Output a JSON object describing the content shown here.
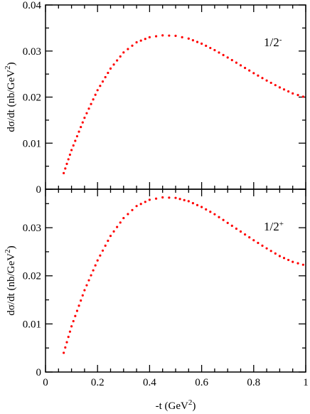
{
  "chart_data": [
    {
      "type": "scatter",
      "panel_label": {
        "base": "1/2",
        "sup": "-"
      },
      "ylabel": {
        "pre": "dσ/dt (nb/GeV",
        "sup": "2",
        "post": ")"
      },
      "xlim": [
        0,
        1
      ],
      "ylim": [
        0,
        0.04
      ],
      "y_ticks": [
        0,
        0.01,
        0.02,
        0.03,
        0.04
      ],
      "y_tick_labels": [
        "0",
        "0.01",
        "0.02",
        "0.03",
        "0.04"
      ],
      "series": [
        {
          "color": "#ff0000",
          "marker": "dotted-curve",
          "x": [
            0.07,
            0.1,
            0.15,
            0.2,
            0.25,
            0.3,
            0.35,
            0.4,
            0.45,
            0.5,
            0.55,
            0.6,
            0.65,
            0.7,
            0.75,
            0.8,
            0.85,
            0.9,
            0.95,
            0.99
          ],
          "y": [
            0.0035,
            0.0085,
            0.0155,
            0.0215,
            0.0262,
            0.0297,
            0.0319,
            0.033,
            0.0334,
            0.0333,
            0.0327,
            0.0316,
            0.0302,
            0.0286,
            0.0269,
            0.0252,
            0.0236,
            0.0221,
            0.0208,
            0.0201
          ]
        }
      ]
    },
    {
      "type": "scatter",
      "panel_label": {
        "base": "1/2",
        "sup": "+"
      },
      "ylabel": {
        "pre": "dσ/dt (nb/GeV",
        "sup": "2",
        "post": ")"
      },
      "xlabel": {
        "pre": "-t (GeV",
        "sup": "2",
        "post": ")"
      },
      "xlim": [
        0,
        1
      ],
      "ylim": [
        0,
        0.038
      ],
      "x_ticks": [
        0,
        0.2,
        0.4,
        0.6,
        0.8,
        1
      ],
      "x_tick_labels": [
        "0",
        "0.2",
        "0.4",
        "0.6",
        "0.8",
        "1"
      ],
      "y_ticks": [
        0,
        0.01,
        0.02,
        0.03
      ],
      "y_tick_labels": [
        "0",
        "0.01",
        "0.02",
        "0.03"
      ],
      "series": [
        {
          "color": "#ff0000",
          "marker": "dotted-curve",
          "x": [
            0.07,
            0.1,
            0.15,
            0.2,
            0.25,
            0.3,
            0.35,
            0.4,
            0.45,
            0.5,
            0.55,
            0.6,
            0.65,
            0.7,
            0.75,
            0.8,
            0.85,
            0.9,
            0.95,
            0.99
          ],
          "y": [
            0.004,
            0.0095,
            0.017,
            0.0232,
            0.0283,
            0.032,
            0.0345,
            0.0358,
            0.0363,
            0.0362,
            0.0355,
            0.0343,
            0.0328,
            0.031,
            0.0292,
            0.0274,
            0.0257,
            0.0241,
            0.0229,
            0.0223
          ]
        }
      ]
    }
  ]
}
